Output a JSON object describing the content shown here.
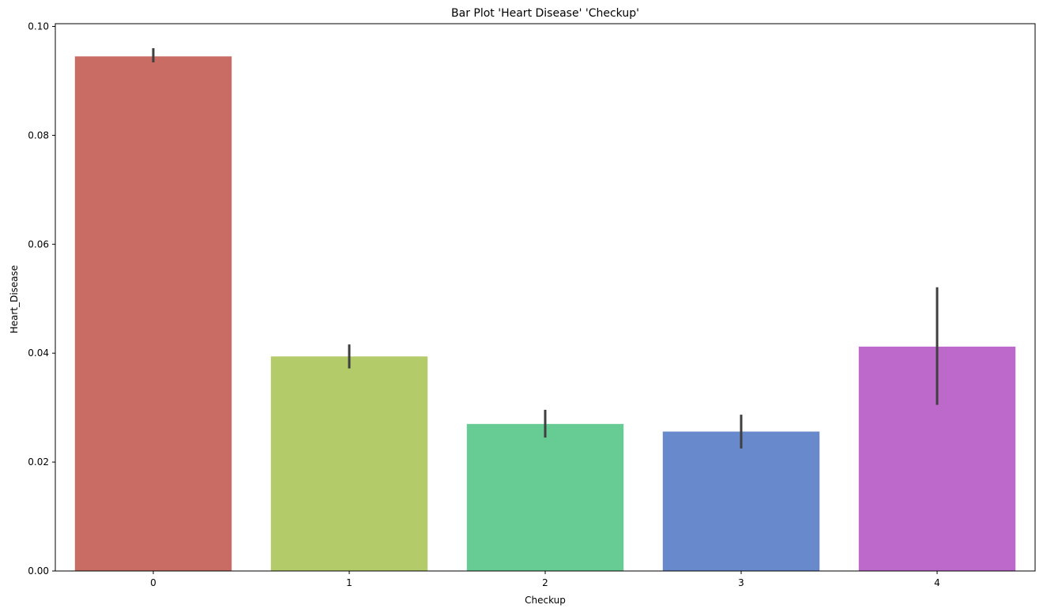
{
  "chart_data": {
    "type": "bar",
    "title": "Bar Plot 'Heart Disease' 'Checkup'",
    "xlabel": "Checkup",
    "ylabel": "Heart_Disease",
    "categories": [
      "0",
      "1",
      "2",
      "3",
      "4"
    ],
    "values": [
      0.0945,
      0.0394,
      0.027,
      0.0256,
      0.0412
    ],
    "error_bars": [
      {
        "low": 0.0934,
        "high": 0.096
      },
      {
        "low": 0.0372,
        "high": 0.0416
      },
      {
        "low": 0.0245,
        "high": 0.0296
      },
      {
        "low": 0.0225,
        "high": 0.0287
      },
      {
        "low": 0.0305,
        "high": 0.0521
      }
    ],
    "bar_colors": [
      "#c96c64",
      "#b3cb68",
      "#67cb94",
      "#6889cb",
      "#bd68cb"
    ],
    "error_bar_color": "#3f3f3f",
    "ylim": [
      0,
      0.1005
    ],
    "yticks": [
      0.0,
      0.02,
      0.04,
      0.06,
      0.08,
      0.1
    ],
    "ytick_labels": [
      "0.00",
      "0.02",
      "0.04",
      "0.06",
      "0.08",
      "0.10"
    ],
    "grid": false,
    "legend": "none"
  }
}
